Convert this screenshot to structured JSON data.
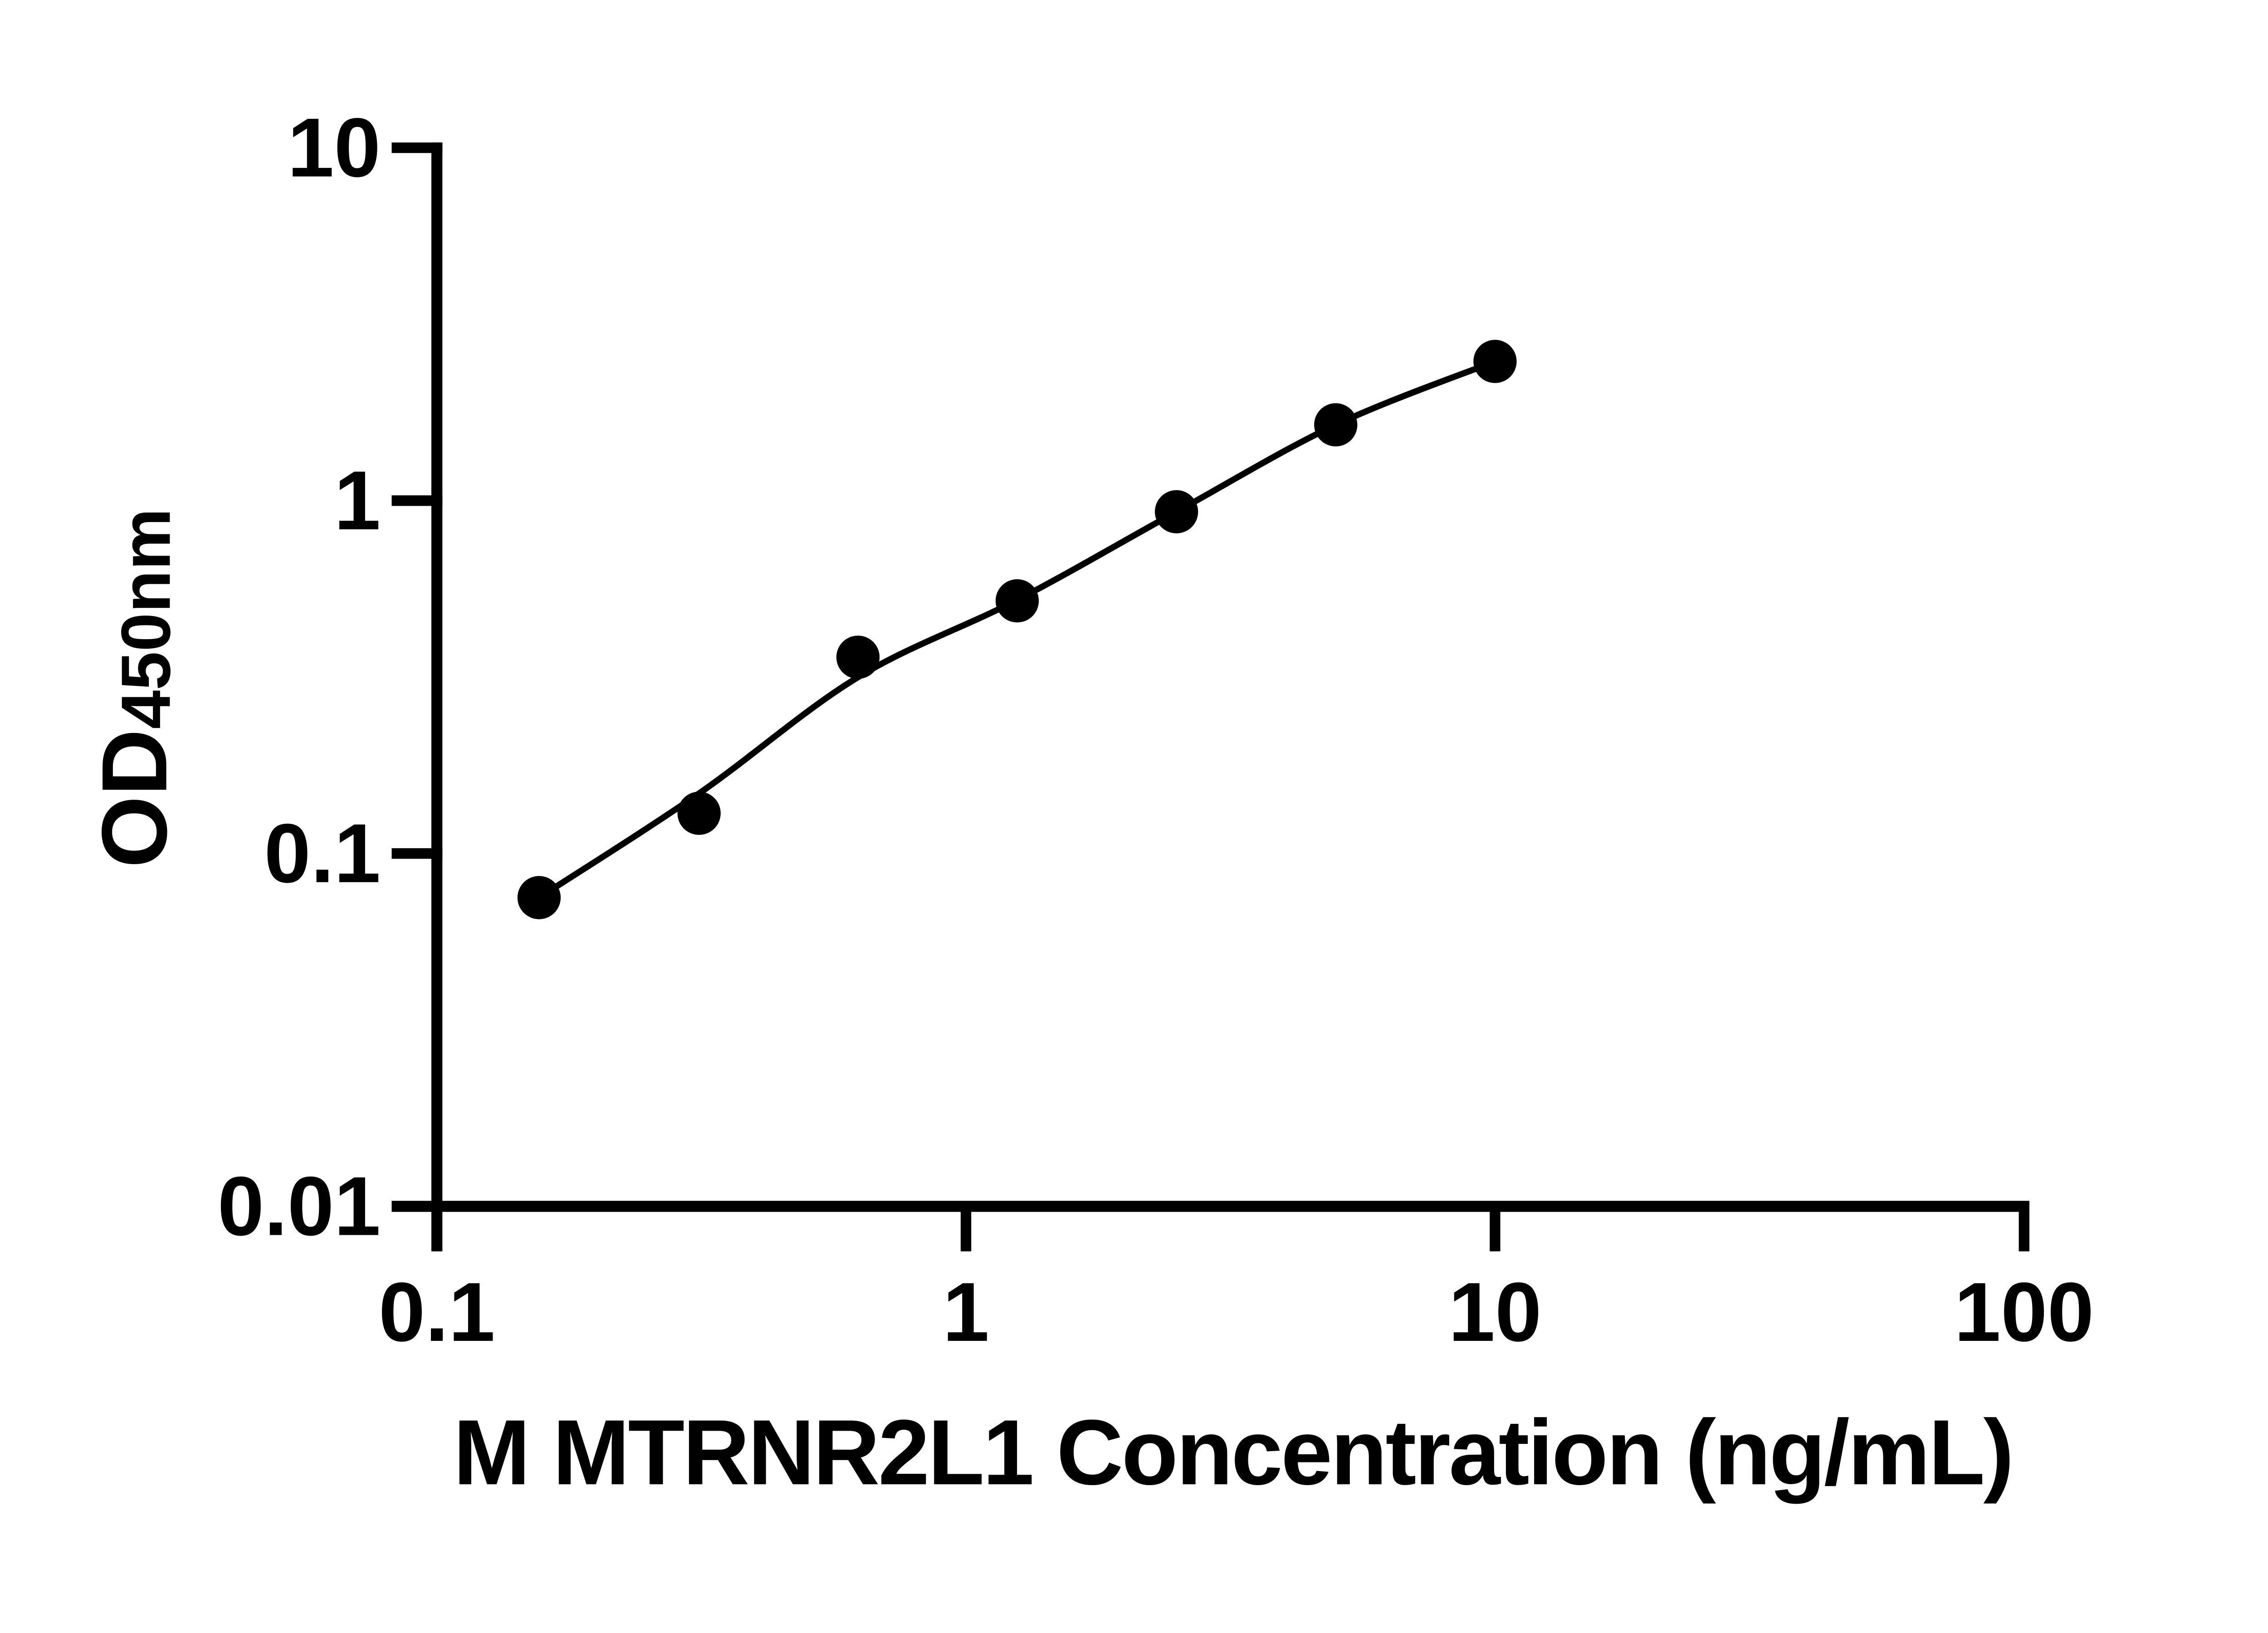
{
  "figure": {
    "background_color": "#ffffff",
    "ink_color": "#000000"
  },
  "chart_data": {
    "type": "scatter",
    "title": "",
    "xlabel": "M MTRNR2L1 Concentration (ng/mL)",
    "ylabel": "OD",
    "ylabel_sub": "450nm",
    "x_scale": "log",
    "y_scale": "log",
    "xlim": [
      0.1,
      100
    ],
    "ylim": [
      0.01,
      10
    ],
    "grid": false,
    "legend": null,
    "marker_style": "filled-circle",
    "x_ticks": [
      {
        "value": 0.1,
        "label": "0.1"
      },
      {
        "value": 1,
        "label": "1"
      },
      {
        "value": 10,
        "label": "10"
      },
      {
        "value": 100,
        "label": "100"
      }
    ],
    "y_ticks": [
      {
        "value": 10,
        "label": "10"
      },
      {
        "value": 1,
        "label": "1"
      },
      {
        "value": 0.1,
        "label": "0.1"
      },
      {
        "value": 0.01,
        "label": "0.01"
      }
    ],
    "series": [
      {
        "name": "standard-curve-points",
        "x": [
          0.156,
          0.313,
          0.625,
          1.25,
          2.5,
          5,
          10
        ],
        "y": [
          0.075,
          0.13,
          0.36,
          0.52,
          0.93,
          1.64,
          2.48
        ]
      }
    ],
    "fit_curve": [
      [
        0.156,
        0.075
      ],
      [
        0.313,
        0.148
      ],
      [
        0.625,
        0.316
      ],
      [
        1.25,
        0.523
      ],
      [
        2.5,
        0.93
      ],
      [
        5,
        1.64
      ],
      [
        10,
        2.48
      ]
    ],
    "colors": {
      "points": "#000000",
      "line": "#000000",
      "axes": "#000000",
      "text": "#000000"
    }
  }
}
